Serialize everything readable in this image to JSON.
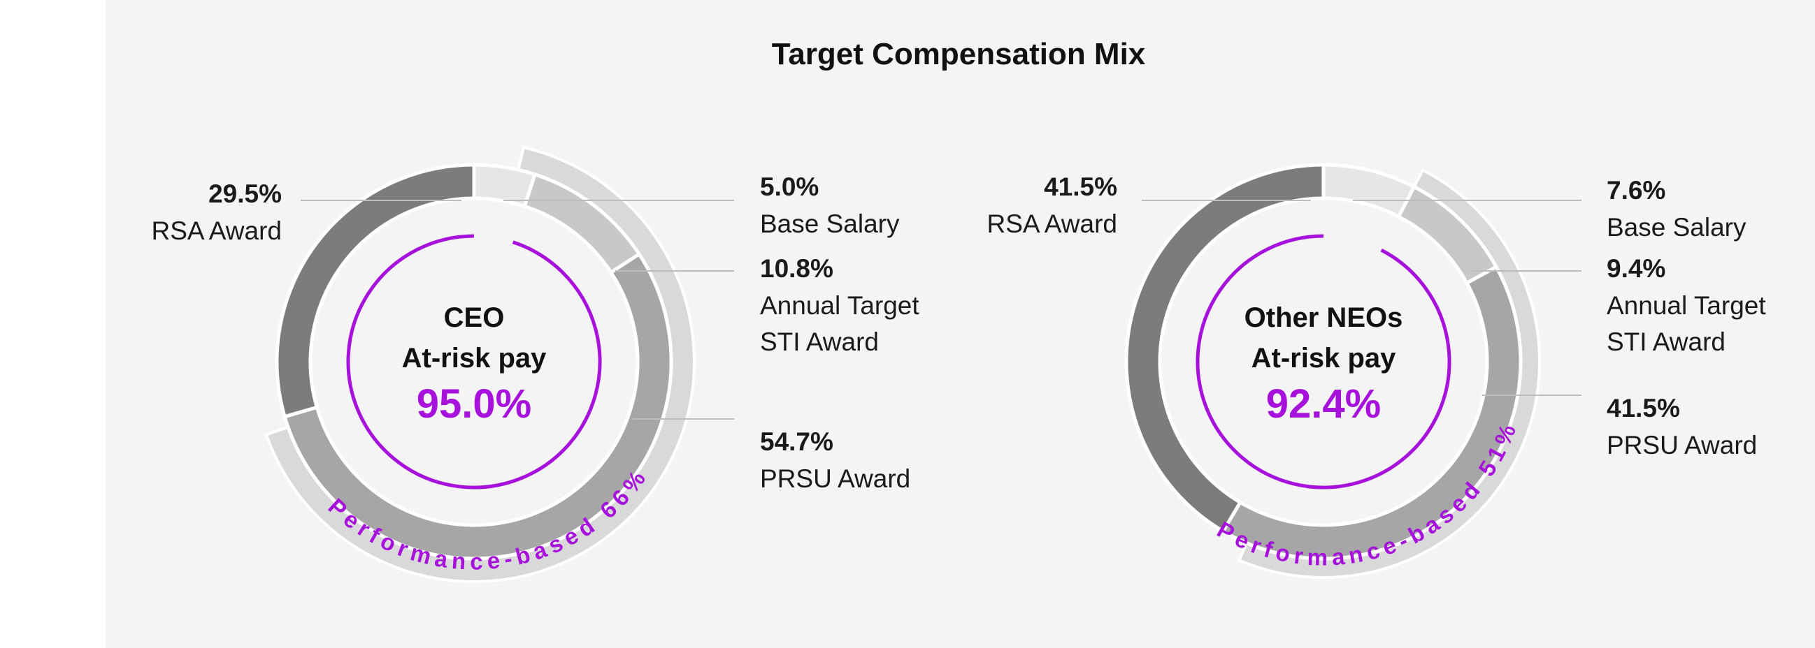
{
  "chart_data": {
    "type": "pie",
    "title": "Target Compensation Mix",
    "colors": {
      "rsa": "#7c7c7c",
      "prsu": "#a6a6a6",
      "sti": "#c8c8c8",
      "base": "#e6e6e6",
      "outer_band": "#d9d9d9",
      "accent": "#a612dc"
    },
    "charts": [
      {
        "name": "CEO",
        "center_line1": "CEO",
        "center_line2": "At-risk pay",
        "at_risk_pct": 95.0,
        "at_risk_label": "95.0%",
        "performance_based_pct": 66,
        "performance_label": "Performance-based 66%",
        "segments": [
          {
            "key": "base",
            "name": "Base Salary",
            "value": 5.0,
            "pct_label": "5.0%",
            "label_lines": [
              "Base Salary"
            ]
          },
          {
            "key": "sti",
            "name": "Annual Target STI Award",
            "value": 10.8,
            "pct_label": "10.8%",
            "label_lines": [
              "Annual Target",
              "STI Award"
            ]
          },
          {
            "key": "prsu",
            "name": "PRSU Award",
            "value": 54.7,
            "pct_label": "54.7%",
            "label_lines": [
              "PRSU Award"
            ]
          },
          {
            "key": "rsa",
            "name": "RSA Award",
            "value": 29.5,
            "pct_label": "29.5%",
            "label_lines": [
              "RSA Award"
            ]
          }
        ]
      },
      {
        "name": "Other NEOs",
        "center_line1": "Other NEOs",
        "center_line2": "At-risk pay",
        "at_risk_pct": 92.4,
        "at_risk_label": "92.4%",
        "performance_based_pct": 51,
        "performance_label": "Performance-based 51%",
        "segments": [
          {
            "key": "base",
            "name": "Base Salary",
            "value": 7.6,
            "pct_label": "7.6%",
            "label_lines": [
              "Base Salary"
            ]
          },
          {
            "key": "sti",
            "name": "Annual Target STI Award",
            "value": 9.4,
            "pct_label": "9.4%",
            "label_lines": [
              "Annual Target",
              "STI Award"
            ]
          },
          {
            "key": "prsu",
            "name": "PRSU Award",
            "value": 41.5,
            "pct_label": "41.5%",
            "label_lines": [
              "PRSU Award"
            ]
          },
          {
            "key": "rsa",
            "name": "RSA Award",
            "value": 41.5,
            "pct_label": "41.5%",
            "label_lines": [
              "RSA Award"
            ]
          }
        ]
      }
    ]
  }
}
